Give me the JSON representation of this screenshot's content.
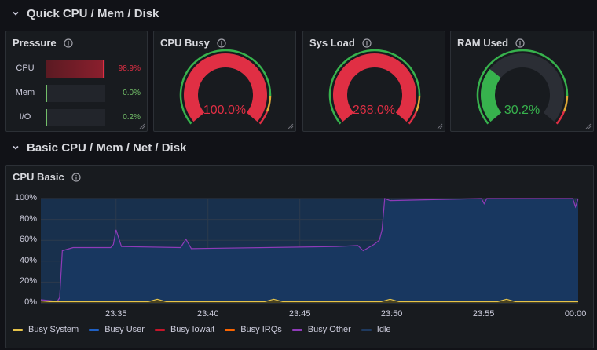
{
  "rows": [
    {
      "title": "Quick CPU / Mem / Disk"
    },
    {
      "title": "Basic CPU / Mem / Net / Disk"
    }
  ],
  "pressure": {
    "title": "Pressure",
    "items": [
      {
        "label": "CPU",
        "value": "98.9%",
        "fraction": 0.989,
        "color": "#e02f44"
      },
      {
        "label": "Mem",
        "value": "0.0%",
        "fraction": 0.0,
        "color": "#73bf69"
      },
      {
        "label": "I/O",
        "value": "0.2%",
        "fraction": 0.002,
        "color": "#73bf69"
      }
    ]
  },
  "gauges": [
    {
      "title": "CPU Busy",
      "value": "100.0%",
      "fraction": 1.0,
      "color": "#e02f44"
    },
    {
      "title": "Sys Load",
      "value": "268.0%",
      "fraction": 1.0,
      "color": "#e02f44"
    },
    {
      "title": "RAM Used",
      "value": "30.2%",
      "fraction": 0.302,
      "color": "#37b24d"
    }
  ],
  "cpu_basic": {
    "title": "CPU Basic"
  },
  "chart_data": {
    "type": "area",
    "title": "CPU Basic",
    "y_ticks": [
      "100%",
      "80%",
      "60%",
      "40%",
      "20%",
      "0%"
    ],
    "x_ticks": [
      "23:35",
      "23:40",
      "23:45",
      "23:50",
      "23:55",
      "00:00"
    ],
    "ylim": [
      0,
      100
    ],
    "grid": true,
    "legend_position": "bottom",
    "series": [
      {
        "name": "Busy System",
        "color": "#e5c34a"
      },
      {
        "name": "Busy User",
        "color": "#1f60c4"
      },
      {
        "name": "Busy Iowait",
        "color": "#c4162a"
      },
      {
        "name": "Busy IRQs",
        "color": "#fa6400"
      },
      {
        "name": "Busy Other",
        "color": "#8f3bb8"
      },
      {
        "name": "Idle",
        "color": "#1f3a5f"
      }
    ],
    "busy_user_profile": [
      [
        0,
        3
      ],
      [
        0.02,
        2
      ],
      [
        0.03,
        1
      ],
      [
        0.035,
        5
      ],
      [
        0.04,
        50
      ],
      [
        0.06,
        53
      ],
      [
        0.13,
        53
      ],
      [
        0.135,
        56
      ],
      [
        0.14,
        70
      ],
      [
        0.15,
        54
      ],
      [
        0.26,
        53
      ],
      [
        0.27,
        61
      ],
      [
        0.28,
        52
      ],
      [
        0.55,
        54
      ],
      [
        0.59,
        55
      ],
      [
        0.6,
        50
      ],
      [
        0.62,
        56
      ],
      [
        0.63,
        60
      ],
      [
        0.635,
        70
      ],
      [
        0.64,
        100
      ],
      [
        0.65,
        98
      ],
      [
        0.82,
        100
      ],
      [
        0.825,
        95
      ],
      [
        0.83,
        100
      ],
      [
        0.99,
        100
      ],
      [
        0.995,
        92
      ],
      [
        1,
        100
      ]
    ]
  },
  "icons": {
    "info": "info-circle-icon",
    "chevron": "chevron-down-icon",
    "resize": "resize-handle-icon"
  }
}
